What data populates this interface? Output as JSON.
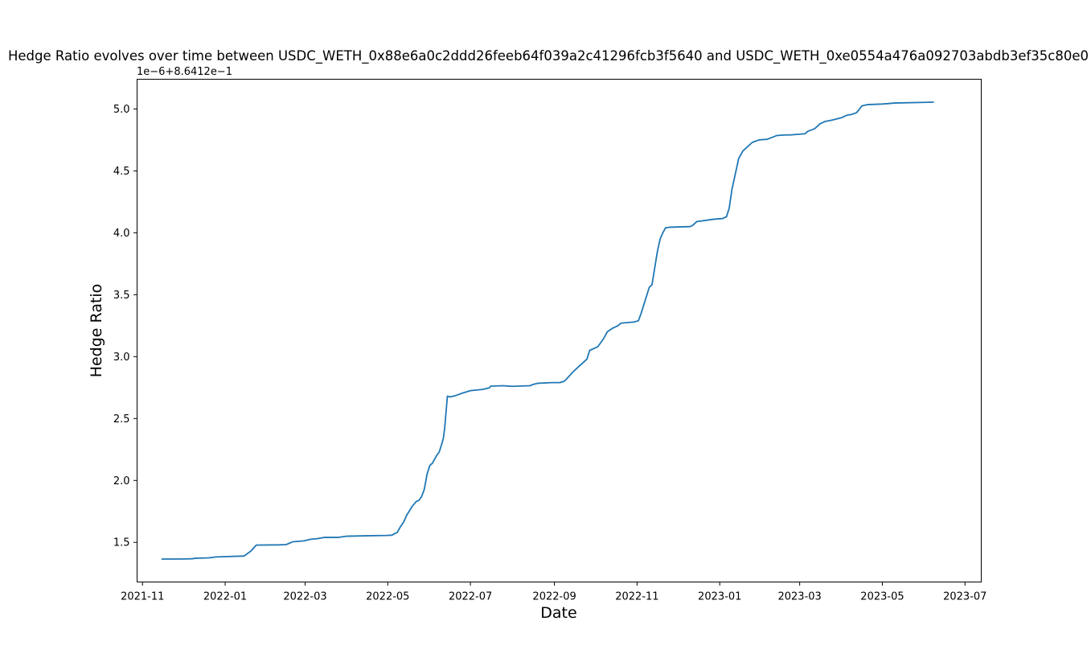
{
  "chart_data": {
    "type": "line",
    "title": "Hedge Ratio evolves over time between USDC_WETH_0x88e6a0c2ddd26feeb64f039a2c41296fcb3f5640 and USDC_WETH_0xe0554a476a092703abdb3ef35c80e0",
    "xlabel": "Date",
    "ylabel": "Hedge Ratio",
    "y_offset_label": "1e−6+8.6412e−1",
    "xlim": [
      "2021-10-28",
      "2023-07-13"
    ],
    "ylim": [
      1.18,
      5.24
    ],
    "x_tick_labels": [
      "2021-11",
      "2022-01",
      "2022-03",
      "2022-05",
      "2022-07",
      "2022-09",
      "2022-11",
      "2023-01",
      "2023-03",
      "2023-05",
      "2023-07"
    ],
    "x_tick_dates": [
      "2021-11-01",
      "2022-01-01",
      "2022-03-01",
      "2022-05-01",
      "2022-07-01",
      "2022-09-01",
      "2022-11-01",
      "2023-01-01",
      "2023-03-01",
      "2023-05-01",
      "2023-07-01"
    ],
    "y_ticks": [
      "1.5",
      "2.0",
      "2.5",
      "3.0",
      "3.5",
      "4.0",
      "4.5",
      "5.0"
    ],
    "grid": false,
    "color": "#1f77b4",
    "series": [
      {
        "x": [
          "2021-11-15",
          "2021-12-01",
          "2021-12-08",
          "2021-12-10",
          "2021-12-20",
          "2021-12-25",
          "2022-01-15",
          "2022-01-20",
          "2022-01-24",
          "2022-02-10",
          "2022-02-15",
          "2022-02-20",
          "2022-02-28",
          "2022-03-05",
          "2022-03-10",
          "2022-03-15",
          "2022-03-25",
          "2022-04-01",
          "2022-04-15",
          "2022-04-30",
          "2022-05-04",
          "2022-05-06",
          "2022-05-08",
          "2022-05-10",
          "2022-05-13",
          "2022-05-15",
          "2022-05-19",
          "2022-05-22",
          "2022-05-24",
          "2022-05-26",
          "2022-05-28",
          "2022-05-30",
          "2022-06-01",
          "2022-06-03",
          "2022-06-06",
          "2022-06-08",
          "2022-06-10",
          "2022-06-11",
          "2022-06-12",
          "2022-06-13",
          "2022-06-14",
          "2022-06-16",
          "2022-06-20",
          "2022-06-25",
          "2022-07-01",
          "2022-07-10",
          "2022-07-15",
          "2022-07-16",
          "2022-07-25",
          "2022-08-01",
          "2022-08-14",
          "2022-08-16",
          "2022-08-20",
          "2022-08-30",
          "2022-09-05",
          "2022-09-08",
          "2022-09-10",
          "2022-09-15",
          "2022-09-20",
          "2022-09-25",
          "2022-09-27",
          "2022-10-01",
          "2022-10-03",
          "2022-10-07",
          "2022-10-10",
          "2022-10-14",
          "2022-10-18",
          "2022-10-20",
          "2022-10-30",
          "2022-11-02",
          "2022-11-04",
          "2022-11-06",
          "2022-11-10",
          "2022-11-12",
          "2022-11-16",
          "2022-11-18",
          "2022-11-20",
          "2022-11-22",
          "2022-11-25",
          "2022-12-10",
          "2022-12-12",
          "2022-12-15",
          "2022-12-28",
          "2023-01-03",
          "2023-01-06",
          "2023-01-08",
          "2023-01-10",
          "2023-01-12",
          "2023-01-15",
          "2023-01-18",
          "2023-01-22",
          "2023-01-25",
          "2023-01-30",
          "2023-02-05",
          "2023-02-12",
          "2023-02-18",
          "2023-02-22",
          "2023-03-05",
          "2023-03-07",
          "2023-03-12",
          "2023-03-16",
          "2023-03-20",
          "2023-03-25",
          "2023-04-01",
          "2023-04-05",
          "2023-04-08",
          "2023-04-12",
          "2023-04-16",
          "2023-04-20",
          "2023-05-01",
          "2023-05-05",
          "2023-05-10",
          "2023-06-08"
        ],
        "y": [
          1.365,
          1.366,
          1.368,
          1.372,
          1.375,
          1.382,
          1.39,
          1.43,
          1.478,
          1.48,
          1.482,
          1.505,
          1.512,
          1.525,
          1.53,
          1.54,
          1.54,
          1.55,
          1.553,
          1.556,
          1.558,
          1.57,
          1.58,
          1.62,
          1.67,
          1.72,
          1.79,
          1.83,
          1.84,
          1.87,
          1.93,
          2.05,
          2.12,
          2.14,
          2.2,
          2.23,
          2.3,
          2.34,
          2.42,
          2.55,
          2.68,
          2.675,
          2.685,
          2.705,
          2.725,
          2.735,
          2.748,
          2.762,
          2.765,
          2.76,
          2.765,
          2.775,
          2.785,
          2.79,
          2.79,
          2.8,
          2.82,
          2.88,
          2.93,
          2.98,
          3.05,
          3.07,
          3.08,
          3.14,
          3.2,
          3.23,
          3.25,
          3.27,
          3.28,
          3.29,
          3.35,
          3.42,
          3.56,
          3.58,
          3.85,
          3.95,
          4.0,
          4.04,
          4.045,
          4.05,
          4.06,
          4.09,
          4.11,
          4.115,
          4.13,
          4.2,
          4.35,
          4.45,
          4.6,
          4.66,
          4.7,
          4.73,
          4.75,
          4.755,
          4.785,
          4.79,
          4.79,
          4.8,
          4.82,
          4.84,
          4.88,
          4.9,
          4.91,
          4.93,
          4.95,
          4.955,
          4.97,
          5.025,
          5.035,
          5.04,
          5.043,
          5.048,
          5.055
        ]
      }
    ]
  }
}
